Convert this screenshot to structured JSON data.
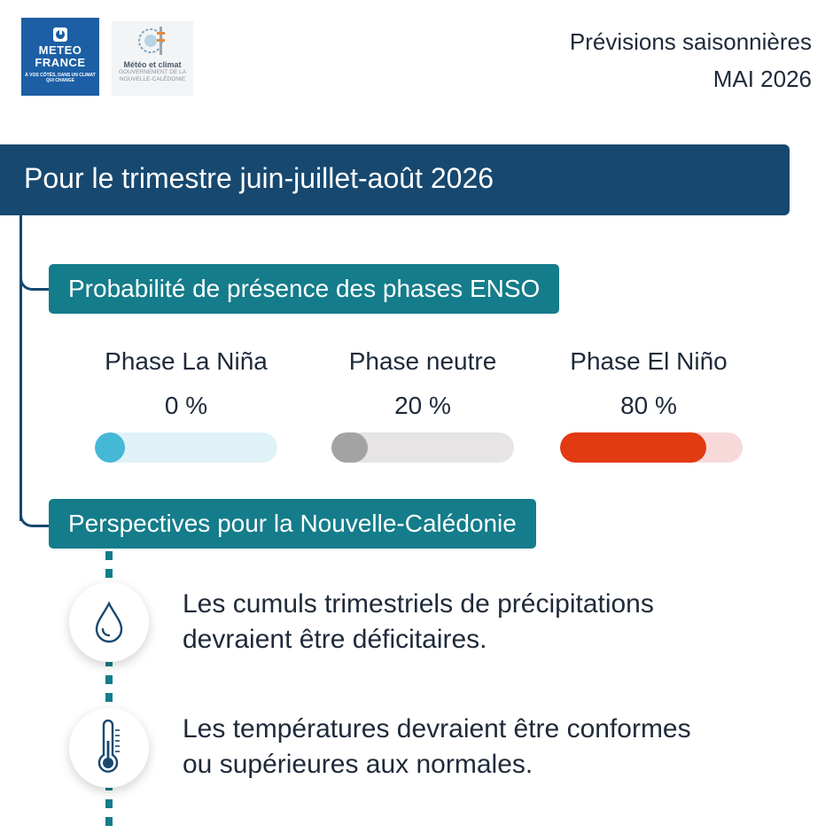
{
  "logos": {
    "meteo_france": {
      "line1": "METEO",
      "line2": "FRANCE",
      "tagline": "À VOS CÔTÉS, DANS UN CLIMAT QUI CHANGE"
    },
    "nc": {
      "title": "Météo et climat",
      "sub1": "GOUVERNEMENT DE LA",
      "sub2": "NOUVELLE-CALÉDONIE"
    }
  },
  "header": {
    "line1": "Prévisions saisonnières",
    "line2": "MAI 2026"
  },
  "banner": {
    "title": "Pour le trimestre juin-juillet-août 2026"
  },
  "enso": {
    "heading": "Probabilité de présence des phases ENSO",
    "phases": [
      {
        "name": "Phase La Niña",
        "value_label": "0 %",
        "probability": 0,
        "fill_color": "#45b8d6",
        "track_color": "#dff2f8"
      },
      {
        "name": "Phase neutre",
        "value_label": "20 %",
        "probability": 20,
        "fill_color": "#a3a3a3",
        "track_color": "#e6e4e4"
      },
      {
        "name": "Phase El Niño",
        "value_label": "80 %",
        "probability": 80,
        "fill_color": "#e23a12",
        "track_color": "#f7d9da"
      }
    ]
  },
  "perspectives": {
    "heading": "Perspectives pour la Nouvelle-Calédonie",
    "items": [
      {
        "icon": "water-drop-icon",
        "line1": "Les cumuls trimestriels de précipitations",
        "line2": "devraient être déficitaires."
      },
      {
        "icon": "thermometer-icon",
        "line1": "Les températures devraient être conformes",
        "line2": "ou supérieures  aux normales."
      }
    ]
  },
  "colors": {
    "navy": "#17486f",
    "teal": "#147c8a",
    "brand_blue": "#1c5fa5"
  }
}
